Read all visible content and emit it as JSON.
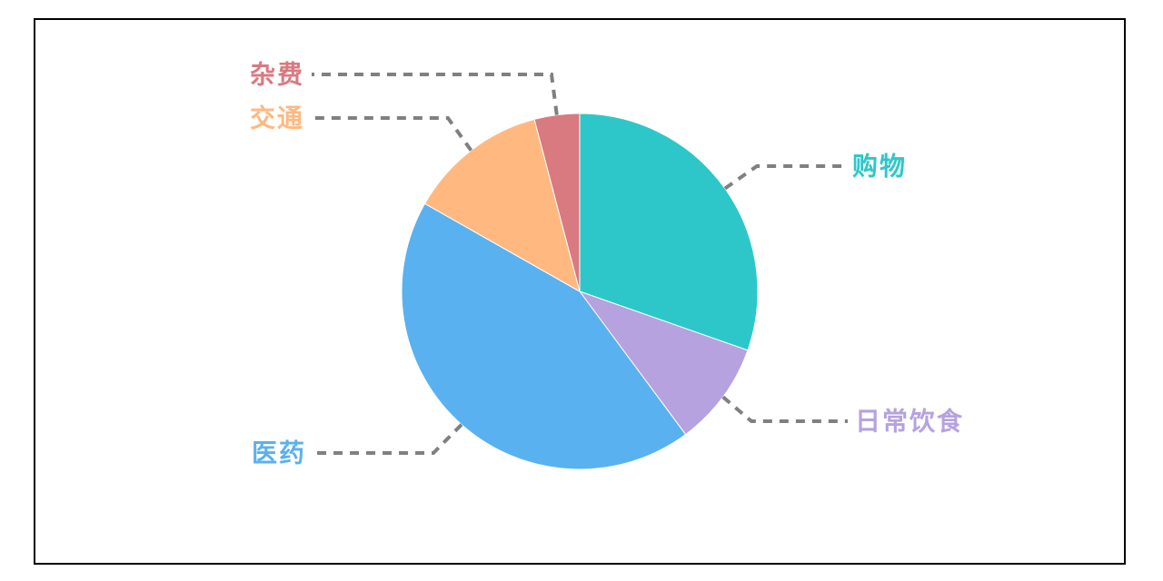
{
  "page": {
    "background_color": "#ffffff",
    "frame_border_color": "#000000"
  },
  "chart_data": {
    "type": "pie",
    "title": "",
    "series": [
      {
        "name": "购物",
        "value": 30.4,
        "color": "#2ec7c9"
      },
      {
        "name": "日常饮食",
        "value": 9.5,
        "color": "#b6a2de"
      },
      {
        "name": "医药",
        "value": 43.4,
        "color": "#5ab1ef"
      },
      {
        "name": "交通",
        "value": 12.7,
        "color": "#ffb980"
      },
      {
        "name": "杂费",
        "value": 4.1,
        "color": "#d87a80"
      }
    ],
    "values_unit": "percent (estimated from slice angles)",
    "start_angle_deg": 0,
    "direction": "clockwise",
    "legend_position": "none (outside callout labels)",
    "label_style": "outside dashed leader lines, label text colored same as slice",
    "label_line_color": "#808080",
    "slice_border_color": "#ffffff"
  }
}
